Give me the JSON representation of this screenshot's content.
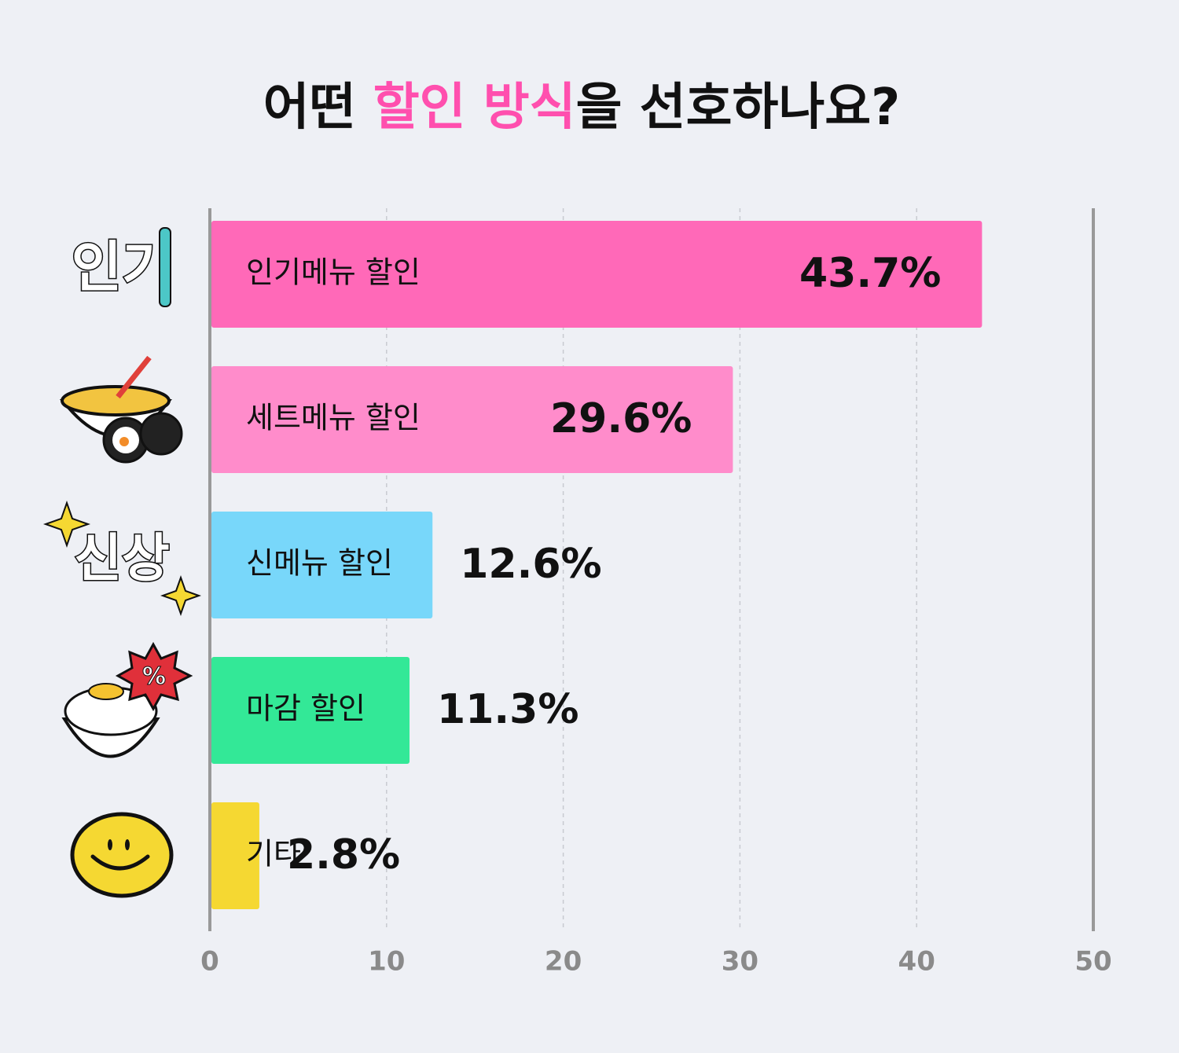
{
  "chart_data": {
    "type": "hbar",
    "title": "어떤 할인 방식을 선호하나요?",
    "title_highlight": "할인 방식",
    "categories": [
      "인기메뉴 할인",
      "세트메뉴 할인",
      "신메뉴 할인",
      "마감 할인",
      "기타"
    ],
    "values": [
      43.7,
      29.6,
      12.6,
      11.3,
      2.8
    ],
    "value_labels": [
      "43.7%",
      "29.6%",
      "12.6%",
      "11.3%",
      "2.8%"
    ],
    "colors": [
      "#ff69b8",
      "#ff8ccb",
      "#78d7fa",
      "#33e897",
      "#f5d832"
    ],
    "xlim": [
      0,
      50
    ],
    "xticks": [
      0,
      10,
      20,
      30,
      40,
      50
    ],
    "grid": true,
    "icon_labels": [
      "인기",
      "신상",
      "%"
    ]
  }
}
